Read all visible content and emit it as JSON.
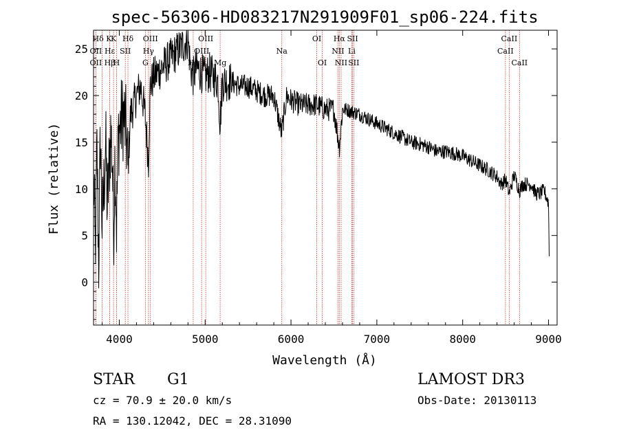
{
  "chart_data": {
    "type": "line",
    "title": "spec-56306-HD083217N291909F01_sp06-224.fits",
    "xlabel": "Wavelength (Å)",
    "ylabel": "Flux (relative)",
    "xlim": [
      3700,
      9100
    ],
    "ylim": [
      -4.6,
      27
    ],
    "xticks": [
      4000,
      5000,
      6000,
      7000,
      8000,
      9000
    ],
    "yticks": [
      0,
      5,
      10,
      15,
      20,
      25
    ],
    "grid": false,
    "series": [
      {
        "name": "flux",
        "x": [
          3700,
          3720,
          3740,
          3760,
          3780,
          3800,
          3820,
          3840,
          3860,
          3880,
          3900,
          3920,
          3933,
          3950,
          3968,
          3990,
          4020,
          4050,
          4080,
          4101,
          4130,
          4170,
          4200,
          4250,
          4300,
          4340,
          4360,
          4400,
          4450,
          4500,
          4550,
          4600,
          4650,
          4700,
          4750,
          4800,
          4830,
          4861,
          4900,
          4950,
          5000,
          5050,
          5100,
          5150,
          5175,
          5200,
          5250,
          5300,
          5400,
          5500,
          5600,
          5700,
          5800,
          5890,
          5950,
          6000,
          6100,
          6200,
          6300,
          6400,
          6500,
          6563,
          6600,
          6650,
          6700,
          6800,
          6900,
          7000,
          7100,
          7200,
          7300,
          7400,
          7500,
          7600,
          7700,
          7800,
          7900,
          8000,
          8100,
          8200,
          8300,
          8400,
          8450,
          8500,
          8542,
          8600,
          8662,
          8700,
          8750,
          8800,
          8850,
          8900,
          8950,
          9000,
          9010
        ],
        "y": [
          12,
          3,
          14,
          2,
          16,
          6,
          10,
          15,
          8,
          12,
          16,
          13,
          5,
          14,
          6,
          16,
          17,
          18,
          16,
          12,
          18,
          19,
          20,
          21,
          18,
          13,
          21,
          22,
          22.5,
          23,
          23.5,
          24,
          24.5,
          25,
          25.5,
          26,
          23,
          22,
          23,
          22.5,
          22,
          22.5,
          22,
          21.5,
          17,
          21.5,
          21.5,
          21.5,
          21,
          21,
          20.5,
          20,
          20,
          16,
          20,
          19.5,
          19,
          19,
          19,
          18.5,
          18.5,
          14.5,
          18.5,
          18.5,
          18.3,
          18,
          17.5,
          17,
          16.5,
          16,
          15.5,
          15,
          14.8,
          14.5,
          14,
          14,
          13.8,
          13.5,
          13,
          12.5,
          12,
          11.3,
          10.5,
          11,
          9.5,
          11.5,
          9.8,
          10.5,
          10.5,
          10.5,
          9.5,
          9.5,
          9.8,
          8.5,
          1.5
        ]
      }
    ],
    "lines": [
      {
        "label": "Hδ K",
        "wl": 3800,
        "row": 0
      },
      {
        "label": "OII",
        "wl": 3727,
        "row": 1
      },
      {
        "label": "OII",
        "wl": 3727,
        "row": 2
      },
      {
        "label": "Hε",
        "wl": 3889,
        "row": 1
      },
      {
        "label": "K",
        "wl": 3933,
        "row": 0
      },
      {
        "label": "Hβ",
        "wl": 3889,
        "row": 2
      },
      {
        "label": "H",
        "wl": 3968,
        "row": 2
      },
      {
        "label": "SII",
        "wl": 4070,
        "row": 1
      },
      {
        "label": "Hδ",
        "wl": 4101,
        "row": 0
      },
      {
        "label": "OIII",
        "wl": 4363,
        "row": 0
      },
      {
        "label": "Hγ",
        "wl": 4340,
        "row": 1
      },
      {
        "label": "G",
        "wl": 4304,
        "row": 2
      },
      {
        "label": "OIII",
        "wl": 5007,
        "row": 0
      },
      {
        "label": "OIII",
        "wl": 4959,
        "row": 1
      },
      {
        "label": "Hβ",
        "wl": 4861,
        "row": 2
      },
      {
        "label": "Mg",
        "wl": 5175,
        "row": 2
      },
      {
        "label": "Na",
        "wl": 5893,
        "row": 1
      },
      {
        "label": "OI",
        "wl": 6300,
        "row": 0
      },
      {
        "label": "OI",
        "wl": 6364,
        "row": 2
      },
      {
        "label": "Hα",
        "wl": 6563,
        "row": 0
      },
      {
        "label": "NII",
        "wl": 6548,
        "row": 1
      },
      {
        "label": "NII",
        "wl": 6584,
        "row": 2
      },
      {
        "label": "SII",
        "wl": 6717,
        "row": 0
      },
      {
        "label": "Li",
        "wl": 6708,
        "row": 1
      },
      {
        "label": "SII",
        "wl": 6731,
        "row": 2
      },
      {
        "label": "CaII",
        "wl": 8542,
        "row": 0
      },
      {
        "label": "CaII",
        "wl": 8498,
        "row": 1
      },
      {
        "label": "CaII",
        "wl": 8662,
        "row": 2
      }
    ]
  },
  "info": {
    "class": "STAR",
    "subclass": "G1",
    "cz": "cz = 70.9 ± 20.0 km/s",
    "radec": "RA = 130.12042, DEC =  28.31090",
    "survey": "LAMOST DR3",
    "obsdate": "Obs-Date: 20130113"
  },
  "colors": {
    "line_marker": "#c0392b",
    "spectrum": "#000000"
  }
}
